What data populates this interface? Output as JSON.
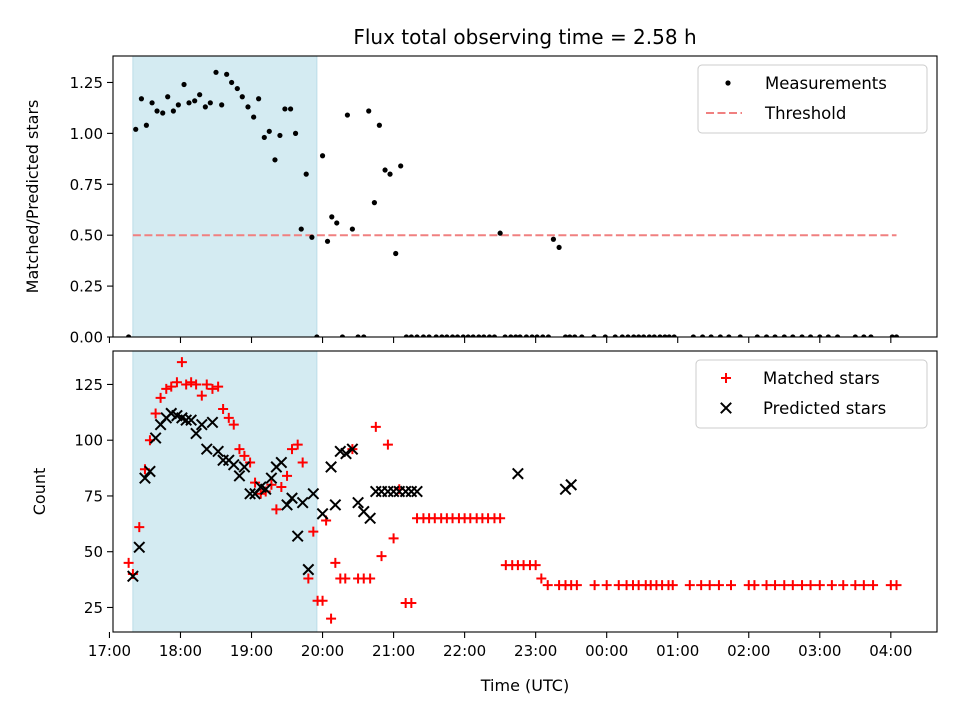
{
  "chart_data": [
    {
      "type": "scatter",
      "title": "Flux total observing time = 2.58 h",
      "xlabel": "",
      "ylabel": "Matched/Predicted stars",
      "xlim": [
        17.05,
        28.65
      ],
      "ylim": [
        0,
        1.38
      ],
      "yticks": [
        0.0,
        0.25,
        0.5,
        0.75,
        1.0,
        1.25
      ],
      "ytick_labels": [
        "0.00",
        "0.25",
        "0.50",
        "0.75",
        "1.00",
        "1.25"
      ],
      "shaded_region": {
        "x": [
          17.33,
          19.92
        ],
        "color": "#d4ebf2"
      },
      "threshold": {
        "name": "Threshold",
        "value": 0.5,
        "x": [
          17.33,
          28.08
        ],
        "color": "#f08080"
      },
      "legend": [
        "Measurements",
        "Threshold"
      ],
      "legend_position": "top-right",
      "series": [
        {
          "name": "Measurements",
          "marker": "dot",
          "color": "#000000",
          "x": [
            17.27,
            17.37,
            17.45,
            17.52,
            17.6,
            17.67,
            17.75,
            17.82,
            17.9,
            17.97,
            18.05,
            18.12,
            18.2,
            18.27,
            18.35,
            18.42,
            18.5,
            18.58,
            18.65,
            18.72,
            18.8,
            18.87,
            18.95,
            19.03,
            19.1,
            19.18,
            19.25,
            19.33,
            19.4,
            19.47,
            19.55,
            19.62,
            19.7,
            19.77,
            19.85,
            19.92,
            20.0,
            20.07,
            20.13,
            20.2,
            20.28,
            20.35,
            20.42,
            20.5,
            20.58,
            20.65,
            20.73,
            20.8,
            20.88,
            20.95,
            21.03,
            21.1,
            21.18,
            21.25,
            21.33,
            21.42,
            21.5,
            21.6,
            21.68,
            21.75,
            21.83,
            21.9,
            21.98,
            22.05,
            22.12,
            22.2,
            22.27,
            22.35,
            22.42,
            22.5,
            22.57,
            22.65,
            22.72,
            22.78,
            22.87,
            22.95,
            23.02,
            23.1,
            23.18,
            23.25,
            23.33,
            23.42,
            23.48,
            23.55,
            23.65,
            23.82,
            23.98,
            24.12,
            24.22,
            24.3,
            24.38,
            24.45,
            24.52,
            24.6,
            24.67,
            24.75,
            24.82,
            24.88,
            24.95,
            25.22,
            25.35,
            25.47,
            25.6,
            25.72,
            25.88,
            26.12,
            26.25,
            26.37,
            26.5,
            26.62,
            26.75,
            26.87,
            27.0,
            27.12,
            27.25,
            27.5,
            27.62,
            27.72,
            28.02,
            28.08
          ],
          "y": [
            0.0,
            1.02,
            1.17,
            1.04,
            1.15,
            1.11,
            1.1,
            1.18,
            1.11,
            1.14,
            1.24,
            1.15,
            1.16,
            1.19,
            1.13,
            1.15,
            1.3,
            1.14,
            1.29,
            1.25,
            1.22,
            1.18,
            1.13,
            1.08,
            1.17,
            0.98,
            1.01,
            0.87,
            0.99,
            1.12,
            1.12,
            1.0,
            0.53,
            0.8,
            0.49,
            0.0,
            0.89,
            0.47,
            0.59,
            0.56,
            0.0,
            1.09,
            0.53,
            0.0,
            0.0,
            1.11,
            0.66,
            1.04,
            0.82,
            0.8,
            0.41,
            0.84,
            0.0,
            0.0,
            0.0,
            0.0,
            0.0,
            0.0,
            0.0,
            0.0,
            0.0,
            0.0,
            0.0,
            0.0,
            0.0,
            0.0,
            0.0,
            0.0,
            0.0,
            0.51,
            0.0,
            0.0,
            0.0,
            0.0,
            0.0,
            0.0,
            0.0,
            0.0,
            0.0,
            0.48,
            0.44,
            0.0,
            0.0,
            0.0,
            0.0,
            0.0,
            0.0,
            0.0,
            0.0,
            0.0,
            0.0,
            0.0,
            0.0,
            0.0,
            0.0,
            0.0,
            0.0,
            0.0,
            0.0,
            0.0,
            0.0,
            0.0,
            0.0,
            0.0,
            0.0,
            0.0,
            0.0,
            0.0,
            0.0,
            0.0,
            0.0,
            0.0,
            0.0,
            0.0,
            0.0,
            0.0,
            0.0,
            0.0,
            0.0,
            0.0
          ]
        }
      ]
    },
    {
      "type": "scatter",
      "title": "",
      "xlabel": "Time (UTC)",
      "ylabel": "Count",
      "xlim": [
        17.05,
        28.65
      ],
      "ylim": [
        14,
        140
      ],
      "yticks": [
        25,
        50,
        75,
        100,
        125
      ],
      "ytick_labels": [
        "25",
        "50",
        "75",
        "100",
        "125"
      ],
      "xticks": [
        17.0,
        18.0,
        19.0,
        20.0,
        21.0,
        22.0,
        23.0,
        24.0,
        25.0,
        26.0,
        27.0,
        28.0
      ],
      "xtick_labels": [
        "17:00",
        "18:00",
        "19:00",
        "20:00",
        "21:00",
        "22:00",
        "23:00",
        "00:00",
        "01:00",
        "02:00",
        "03:00",
        "04:00"
      ],
      "shaded_region": {
        "x": [
          17.33,
          19.92
        ],
        "color": "#d4ebf2"
      },
      "legend": [
        "Matched stars",
        "Predicted stars"
      ],
      "legend_position": "top-right",
      "series": [
        {
          "name": "Matched stars",
          "marker": "plus",
          "color": "#ff0000",
          "x": [
            17.27,
            17.33,
            17.42,
            17.5,
            17.57,
            17.65,
            17.72,
            17.8,
            17.87,
            17.95,
            18.02,
            18.08,
            18.15,
            18.22,
            18.3,
            18.37,
            18.45,
            18.53,
            18.6,
            18.68,
            18.75,
            18.83,
            18.9,
            18.98,
            19.05,
            19.13,
            19.2,
            19.28,
            19.35,
            19.42,
            19.5,
            19.57,
            19.65,
            19.72,
            19.8,
            19.87,
            19.93,
            20.0,
            20.05,
            20.12,
            20.18,
            20.25,
            20.32,
            20.42,
            20.5,
            20.58,
            20.67,
            20.75,
            20.83,
            20.92,
            21.0,
            21.08,
            21.17,
            21.25,
            21.33,
            21.42,
            21.5,
            21.58,
            21.67,
            21.75,
            21.83,
            21.92,
            22.0,
            22.08,
            22.17,
            22.25,
            22.33,
            22.42,
            22.5,
            22.58,
            22.67,
            22.75,
            22.83,
            22.92,
            23.0,
            23.08,
            23.17,
            23.33,
            23.42,
            23.5,
            23.58,
            23.83,
            24.0,
            24.17,
            24.28,
            24.37,
            24.45,
            24.55,
            24.62,
            24.7,
            24.78,
            24.87,
            24.93,
            25.17,
            25.33,
            25.45,
            25.58,
            25.75,
            26.0,
            26.08,
            26.25,
            26.37,
            26.5,
            26.62,
            26.75,
            26.87,
            27.0,
            27.17,
            27.33,
            27.5,
            27.62,
            27.75,
            28.0,
            28.08
          ],
          "y": [
            45,
            40,
            61,
            87,
            100,
            112,
            119,
            123,
            124,
            126,
            135,
            125,
            126,
            125,
            120,
            125,
            123,
            124,
            114,
            110,
            107,
            96,
            93,
            90,
            81,
            76,
            77,
            80,
            69,
            79,
            84,
            96,
            98,
            90,
            38,
            59,
            28,
            28,
            64,
            20,
            45,
            38,
            38,
            96,
            38,
            38,
            38,
            106,
            48,
            98,
            56,
            78,
            27,
            27,
            65,
            65,
            65,
            65,
            65,
            65,
            65,
            65,
            65,
            65,
            65,
            65,
            65,
            65,
            65,
            44,
            44,
            44,
            44,
            44,
            44,
            38,
            35,
            35,
            35,
            35,
            35,
            35,
            35,
            35,
            35,
            35,
            35,
            35,
            35,
            35,
            35,
            35,
            35,
            35,
            35,
            35,
            35,
            35,
            35,
            35,
            35,
            35,
            35,
            35,
            35,
            35,
            35,
            35,
            35,
            35,
            35,
            35,
            35,
            35
          ]
        },
        {
          "name": "Predicted stars",
          "marker": "x",
          "color": "#000000",
          "x": [
            17.33,
            17.42,
            17.5,
            17.57,
            17.65,
            17.72,
            17.8,
            17.87,
            17.95,
            18.02,
            18.08,
            18.15,
            18.22,
            18.3,
            18.37,
            18.45,
            18.53,
            18.6,
            18.68,
            18.75,
            18.83,
            18.9,
            18.98,
            19.05,
            19.13,
            19.2,
            19.28,
            19.35,
            19.42,
            19.5,
            19.57,
            19.65,
            19.72,
            19.8,
            19.87,
            20.0,
            20.12,
            20.18,
            20.25,
            20.33,
            20.42,
            20.5,
            20.58,
            20.67,
            20.75,
            20.83,
            20.92,
            21.0,
            21.08,
            21.17,
            21.25,
            21.33,
            22.75,
            23.42,
            23.5
          ],
          "y": [
            39,
            52,
            83,
            86,
            101,
            107,
            110,
            112,
            111,
            110,
            109,
            109,
            103,
            107,
            96,
            108,
            95,
            91,
            91,
            89,
            84,
            88,
            76,
            76,
            79,
            78,
            83,
            88,
            90,
            71,
            74,
            57,
            72,
            42,
            76,
            67,
            88,
            71,
            95,
            94,
            96,
            72,
            68,
            65,
            77,
            77,
            77,
            77,
            77,
            77,
            77,
            77,
            85,
            78,
            80
          ]
        }
      ]
    }
  ]
}
